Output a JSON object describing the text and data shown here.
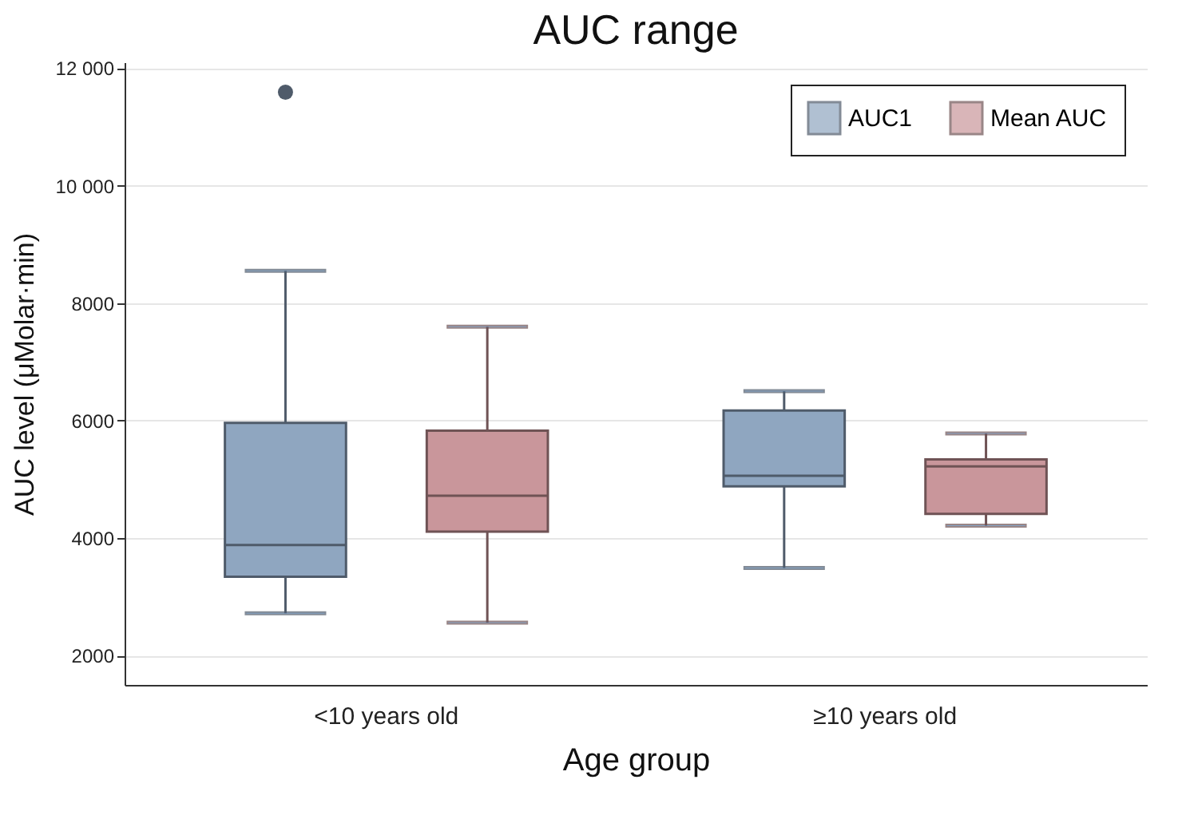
{
  "chart_data": {
    "type": "box",
    "title": "AUC range",
    "xlabel": "Age group",
    "ylabel": "AUC level (μMolar·min)",
    "categories": [
      "<10 years old",
      "≥10 years old"
    ],
    "ylim": [
      1500,
      12100
    ],
    "yticks": [
      2000,
      4000,
      6000,
      8000,
      {
        "value": 10000,
        "label": "10 000"
      },
      {
        "value": 12000,
        "label": "12 000"
      }
    ],
    "grid": "y",
    "legend": "top right",
    "series": [
      {
        "name": "AUC1",
        "color": "#8fa6c0",
        "boxes": [
          {
            "low": 2720,
            "q1": 3340,
            "median": 3880,
            "q3": 5960,
            "high": 8550,
            "outliers": [
              11590
            ]
          },
          {
            "low": 3490,
            "q1": 4880,
            "median": 5060,
            "q3": 6170,
            "high": 6500
          }
        ]
      },
      {
        "name": "Mean AUC",
        "color": "#c9969b",
        "boxes": [
          {
            "low": 2560,
            "q1": 4110,
            "median": 4720,
            "q3": 5830,
            "high": 7600
          },
          {
            "low": 4210,
            "q1": 4410,
            "median": 5220,
            "q3": 5340,
            "high": 5780
          }
        ]
      }
    ]
  }
}
